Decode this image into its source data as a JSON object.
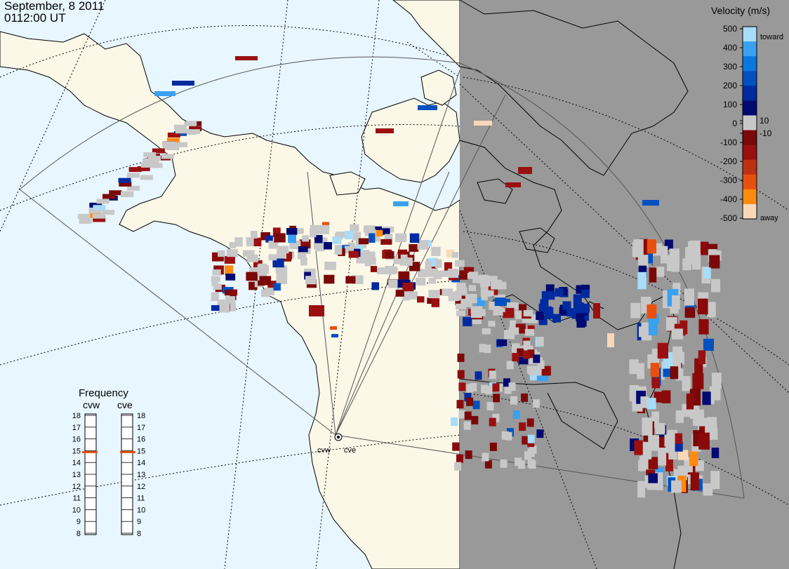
{
  "header": {
    "date": "September, 8 2011",
    "time": "0112:00 UT"
  },
  "colorbar": {
    "title": "Velocity (m/s)",
    "ticks": [
      "500",
      "400",
      "300",
      "200",
      "100",
      "10",
      "0",
      "-10",
      "-100",
      "-200",
      "-300",
      "-400",
      "-500"
    ],
    "toward_label": "toward",
    "away_label": "away",
    "colors": [
      "#f8d8b8",
      "#ff8a10",
      "#e85010",
      "#c03010",
      "#9a1010",
      "#7a0808",
      "#c8c8c8",
      "#000a70",
      "#002aa0",
      "#0050c0",
      "#0a78e0",
      "#3aa0f0",
      "#a8dcf8"
    ]
  },
  "frequency": {
    "title": "Frequency",
    "radar_left": "cvw",
    "radar_right": "cve",
    "scale": [
      "18",
      "17",
      "16",
      "15",
      "14",
      "13",
      "12",
      "11",
      "10",
      "9",
      "8"
    ],
    "left_value": 15,
    "right_value": 15,
    "marker_color": "#e05010"
  },
  "radars": {
    "west": "cvw",
    "east": "cve"
  },
  "map": {
    "ocean_color": "#e8f6ff",
    "land_color": "#fbf8e8",
    "night_color": "#999999",
    "ground_scatter_color": "#c8c8c8"
  }
}
